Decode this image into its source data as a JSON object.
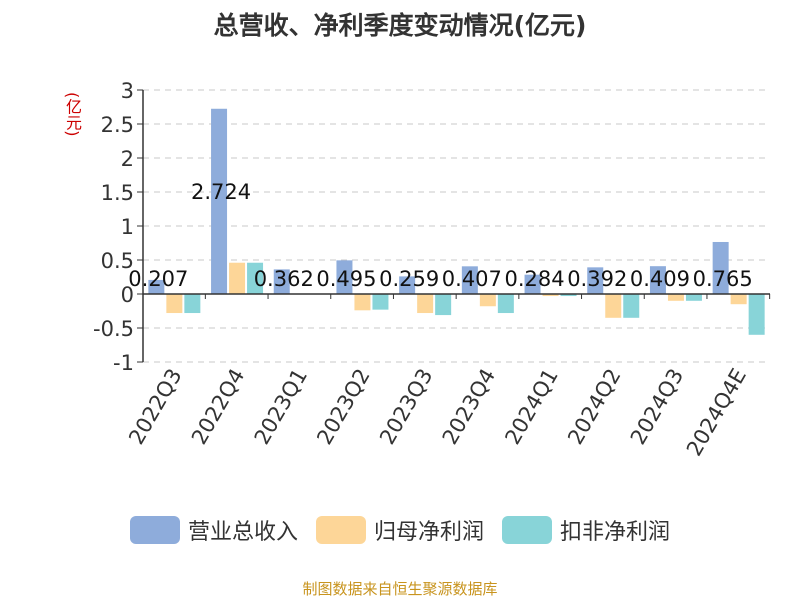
{
  "chart_data": {
    "type": "bar",
    "title": "总营收、净利季度变动情况(亿元)",
    "ylabel": "(亿元)",
    "ylim": [
      -1,
      3
    ],
    "yticks": [
      "3",
      "2.5",
      "2",
      "1.5",
      "1",
      "0.5",
      "0",
      "-0.5",
      "-1"
    ],
    "grid": true,
    "legend_position": "bottom",
    "categories": [
      "2022Q3",
      "2022Q4",
      "2023Q1",
      "2023Q2",
      "2023Q3",
      "2023Q4",
      "2024Q1",
      "2024Q2",
      "2024Q3",
      "2024Q4E"
    ],
    "series": [
      {
        "name": "营业总收入",
        "color": "#8eacdb",
        "values": [
          0.207,
          2.724,
          0.362,
          0.495,
          0.259,
          0.407,
          0.284,
          0.392,
          0.409,
          0.765
        ],
        "labels": [
          "0.207",
          "2.724",
          "0.362",
          "0.495",
          "0.259",
          "0.407",
          "0.284",
          "0.392",
          "0.409",
          "0.765"
        ]
      },
      {
        "name": "归母净利润",
        "color": "#fdd698",
        "values": [
          -0.28,
          0.46,
          0.0,
          -0.24,
          -0.28,
          -0.18,
          -0.03,
          -0.35,
          -0.1,
          -0.15
        ]
      },
      {
        "name": "扣非净利润",
        "color": "#88d4d8",
        "values": [
          -0.28,
          0.46,
          0.0,
          -0.23,
          -0.31,
          -0.28,
          -0.03,
          -0.35,
          -0.1,
          -0.6
        ]
      }
    ]
  },
  "source": "制图数据来自恒生聚源数据库"
}
